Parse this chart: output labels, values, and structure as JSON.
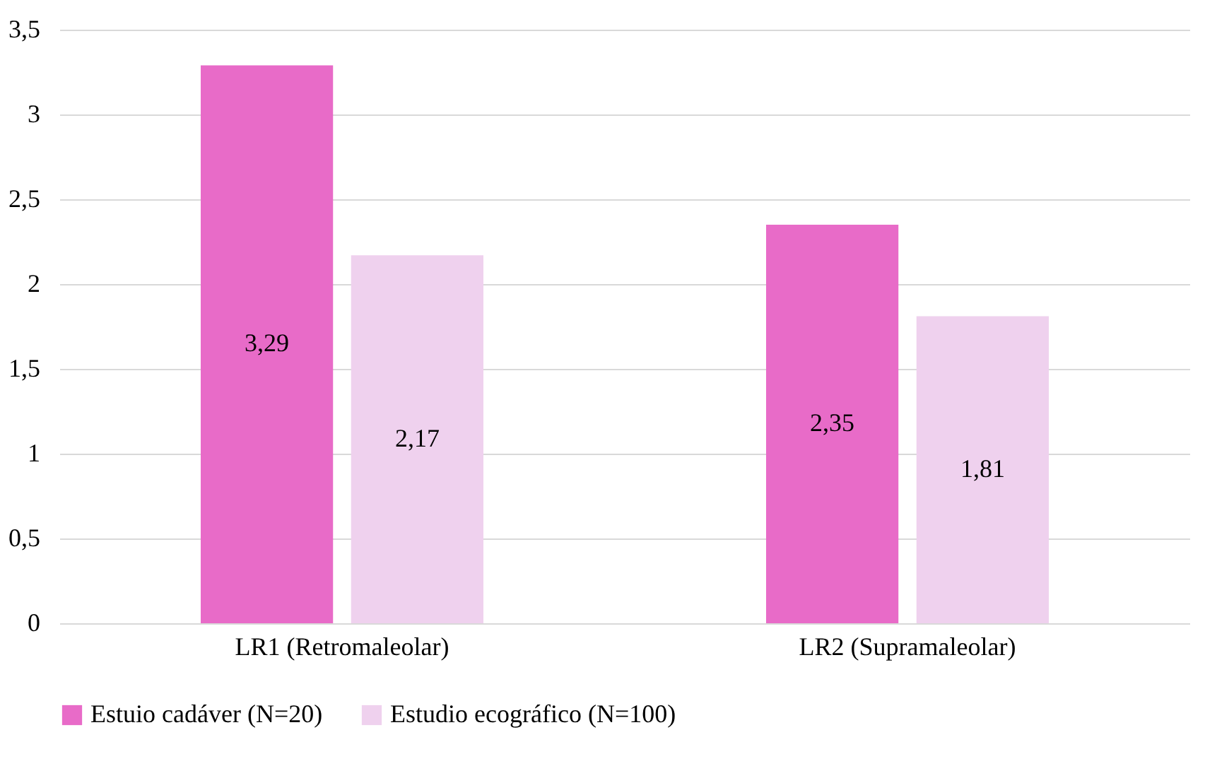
{
  "chart_data": {
    "type": "bar",
    "categories": [
      "LR1 (Retromaleolar)",
      "LR2 (Supramaleolar)"
    ],
    "series": [
      {
        "name": "Estuio cadáver (N=20)",
        "color": "#e86bc8",
        "values": [
          3.29,
          2.35
        ],
        "value_labels": [
          "3,29",
          "2,35"
        ]
      },
      {
        "name": "Estudio ecográfico (N=100)",
        "color": "#efd1ee",
        "values": [
          2.17,
          1.81
        ],
        "value_labels": [
          "2,17",
          "1,81"
        ]
      }
    ],
    "ylim": [
      0,
      3.5
    ],
    "yticks": [
      0,
      {
        "value": 0.5,
        "label": "0,5"
      },
      1,
      {
        "value": 1.5,
        "label": "1,5"
      },
      2,
      {
        "value": 2.5,
        "label": "2,5"
      },
      3,
      {
        "value": 3.5,
        "label": "3,5"
      }
    ],
    "grid": "y",
    "legend": "bottom"
  }
}
